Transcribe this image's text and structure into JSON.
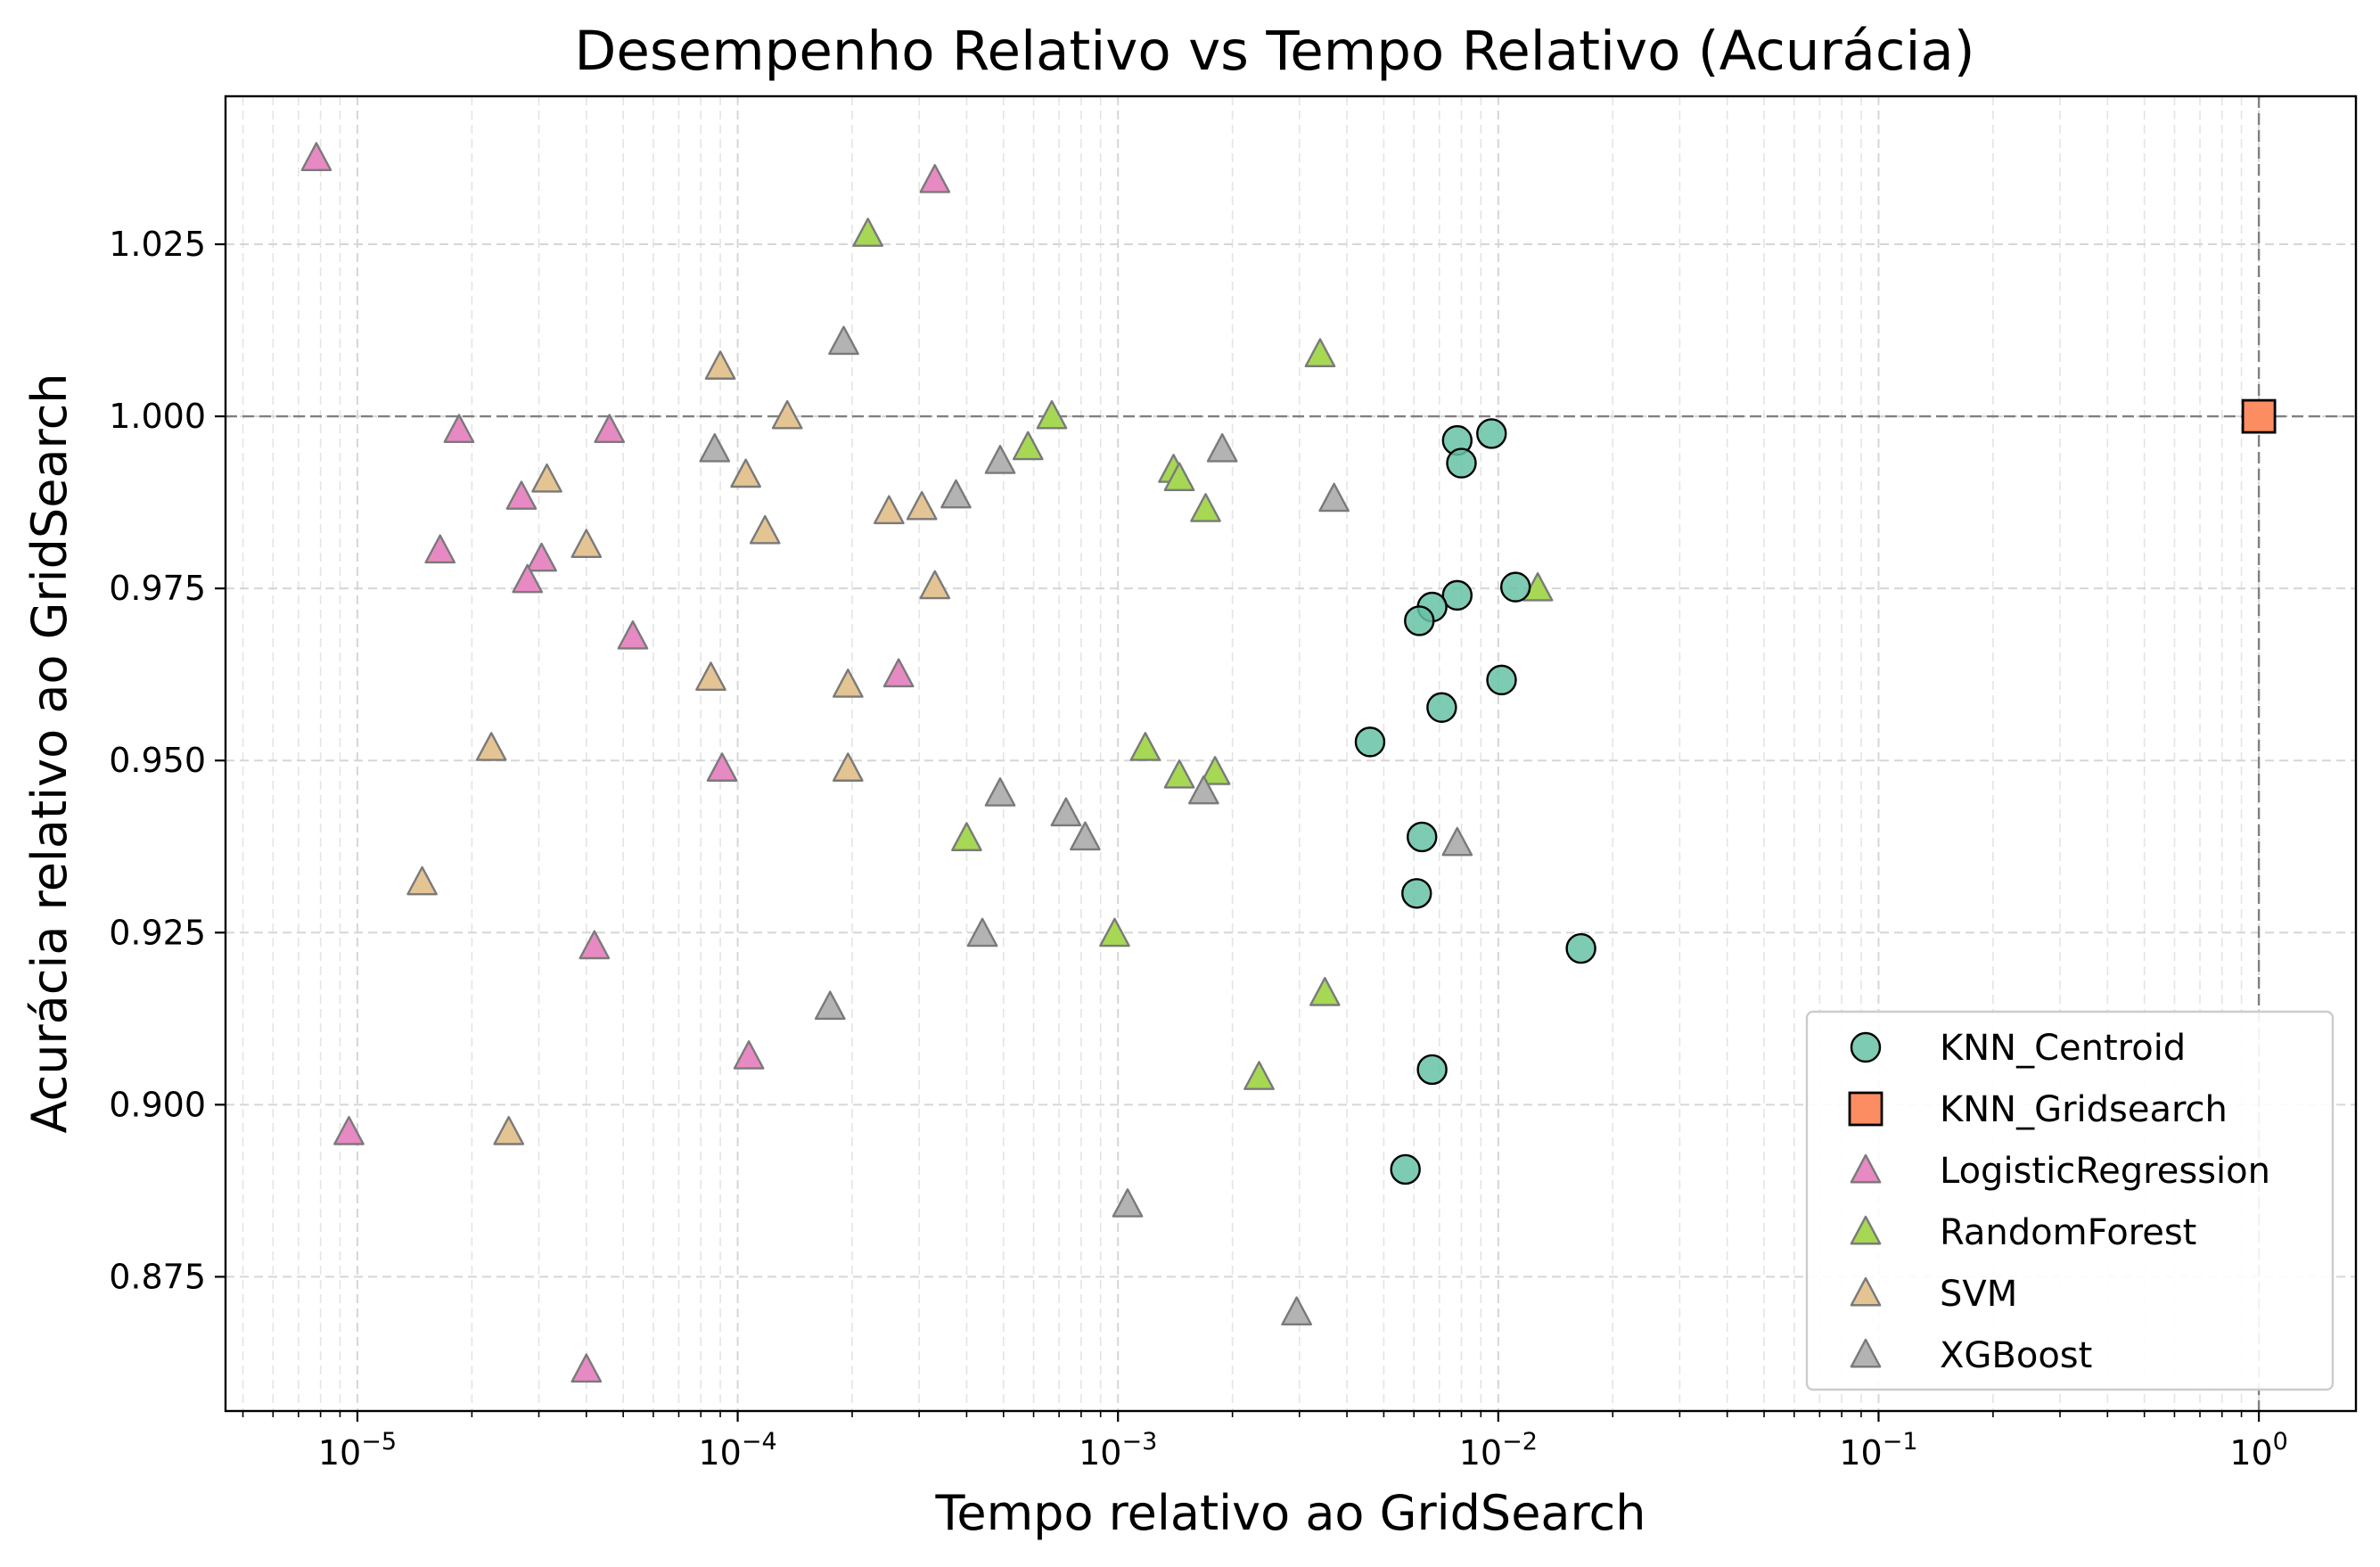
{
  "chart_data": {
    "type": "scatter",
    "title": "Desempenho Relativo vs Tempo Relativo (Acurácia)",
    "xlabel": "Tempo relativo ao GridSearch",
    "ylabel": "Acurácia relativo ao GridSearch",
    "xscale": "log",
    "xlim": [
      4.5e-06,
      1.8
    ],
    "ylim": [
      0.8555,
      1.0465
    ],
    "xticks": [
      {
        "value": 1e-05,
        "base": "10",
        "exp": "−5"
      },
      {
        "value": 0.0001,
        "base": "10",
        "exp": "−4"
      },
      {
        "value": 0.001,
        "base": "10",
        "exp": "−3"
      },
      {
        "value": 0.01,
        "base": "10",
        "exp": "−2"
      },
      {
        "value": 0.1,
        "base": "10",
        "exp": "−1"
      },
      {
        "value": 1,
        "base": "10",
        "exp": "0"
      }
    ],
    "yticks": [
      {
        "value": 0.875,
        "label": "0.875"
      },
      {
        "value": 0.9,
        "label": "0.900"
      },
      {
        "value": 0.925,
        "label": "0.925"
      },
      {
        "value": 0.95,
        "label": "0.950"
      },
      {
        "value": 0.975,
        "label": "0.975"
      },
      {
        "value": 1.0,
        "label": "1.000"
      },
      {
        "value": 1.025,
        "label": "1.025"
      }
    ],
    "grid": true,
    "reference_lines": {
      "x": 1.0,
      "y": 1.0
    },
    "legend_position": "lower-right",
    "series": [
      {
        "name": "KNN_Centroid",
        "marker": "circle",
        "color": "#66c2a5",
        "points": [
          [
            0.0078,
            0.9965
          ],
          [
            0.0096,
            0.9975
          ],
          [
            0.008,
            0.9932
          ],
          [
            0.0111,
            0.9752
          ],
          [
            0.0078,
            0.974
          ],
          [
            0.0067,
            0.9723
          ],
          [
            0.0062,
            0.9703
          ],
          [
            0.0102,
            0.9617
          ],
          [
            0.0071,
            0.9577
          ],
          [
            0.0046,
            0.9527
          ],
          [
            0.0063,
            0.9389
          ],
          [
            0.0061,
            0.9307
          ],
          [
            0.0165,
            0.9227
          ],
          [
            0.0067,
            0.9051
          ],
          [
            0.0057,
            0.8906
          ]
        ]
      },
      {
        "name": "KNN_Gridsearch",
        "marker": "square",
        "color": "#fc8d62",
        "points": [
          [
            1.0,
            1.0
          ]
        ]
      },
      {
        "name": "LogisticRegression",
        "marker": "triangle",
        "color": "#e78ac3",
        "points": [
          [
            7.8e-06,
            1.0375
          ],
          [
            0.00033,
            1.0343
          ],
          [
            1.85e-05,
            0.998
          ],
          [
            4.6e-05,
            0.998
          ],
          [
            2.7e-05,
            0.9883
          ],
          [
            1.65e-05,
            0.9805
          ],
          [
            3.05e-05,
            0.9793
          ],
          [
            2.8e-05,
            0.9762
          ],
          [
            5.3e-05,
            0.968
          ],
          [
            0.000265,
            0.9625
          ],
          [
            9.1e-05,
            0.9488
          ],
          [
            4.2e-05,
            0.923
          ],
          [
            0.000107,
            0.907
          ],
          [
            9.5e-06,
            0.896
          ],
          [
            4e-05,
            0.8615
          ]
        ]
      },
      {
        "name": "RandomForest",
        "marker": "triangle",
        "color": "#a6d854",
        "points": [
          [
            0.00022,
            1.0265
          ],
          [
            0.0034,
            1.009
          ],
          [
            0.00067,
            1.0
          ],
          [
            0.00058,
            0.9955
          ],
          [
            0.0014,
            0.9922
          ],
          [
            0.00145,
            0.991
          ],
          [
            0.0017,
            0.9865
          ],
          [
            0.0127,
            0.975
          ],
          [
            0.00118,
            0.9518
          ],
          [
            0.00145,
            0.9478
          ],
          [
            0.0018,
            0.9483
          ],
          [
            0.0004,
            0.9387
          ],
          [
            0.00098,
            0.9248
          ],
          [
            0.0035,
            0.9162
          ],
          [
            0.00235,
            0.904
          ]
        ]
      },
      {
        "name": "SVM",
        "marker": "triangle",
        "color": "#e5c494",
        "points": [
          [
            9e-05,
            1.0072
          ],
          [
            0.000135,
            1.0
          ],
          [
            3.15e-05,
            0.9908
          ],
          [
            0.000105,
            0.9915
          ],
          [
            0.00025,
            0.9862
          ],
          [
            0.000305,
            0.9868
          ],
          [
            0.000118,
            0.9833
          ],
          [
            4e-05,
            0.9813
          ],
          [
            0.00033,
            0.9753
          ],
          [
            8.5e-05,
            0.962
          ],
          [
            0.000195,
            0.961
          ],
          [
            0.000195,
            0.9488
          ],
          [
            2.25e-05,
            0.9518
          ],
          [
            1.48e-05,
            0.9323
          ],
          [
            2.5e-05,
            0.896
          ]
        ]
      },
      {
        "name": "XGBoost",
        "marker": "triangle",
        "color": "#b3b3b3",
        "points": [
          [
            0.00019,
            1.0108
          ],
          [
            8.7e-05,
            0.9952
          ],
          [
            0.00049,
            0.9935
          ],
          [
            0.00188,
            0.9952
          ],
          [
            0.000375,
            0.9885
          ],
          [
            0.0037,
            0.988
          ],
          [
            0.00049,
            0.9452
          ],
          [
            0.00073,
            0.9423
          ],
          [
            0.00082,
            0.9388
          ],
          [
            0.00168,
            0.9455
          ],
          [
            0.0078,
            0.938
          ],
          [
            0.00044,
            0.9248
          ],
          [
            0.000175,
            0.9142
          ],
          [
            0.00106,
            0.8855
          ],
          [
            0.00295,
            0.8698
          ]
        ]
      }
    ]
  }
}
